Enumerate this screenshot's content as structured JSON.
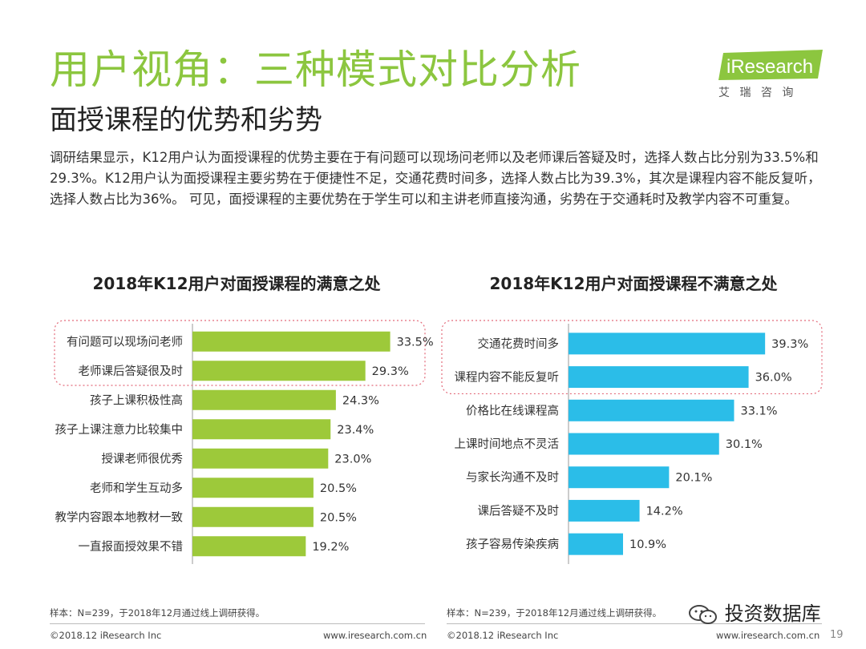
{
  "header": {
    "title": "用户视角：三种模式对比分析",
    "subtitle": "面授课程的优势和劣势",
    "logo_text": "iResearch",
    "logo_sub": "艾 瑞 咨 询"
  },
  "summary": "调研结果显示，K12用户认为面授课程的优势主要在于有问题可以现场问老师以及老师课后答疑及时，选择人数占比分别为33.5%和29.3%。K12用户认为面授课程主要劣势在于便捷性不足，交通花费时间多，选择人数占比为39.3%，其次是课程内容不能反复听，选择人数占比为36%。 可见，面授课程的主要优势在于学生可以和主讲老师直接沟通，劣势在于交通耗时及教学内容不可重复。",
  "chart_data": [
    {
      "type": "bar",
      "orientation": "horizontal",
      "title": "2018年K12用户对面授课程的满意之处",
      "categories": [
        "有问题可以现场问老师",
        "老师课后答疑很及时",
        "孩子上课积极性高",
        "孩子上课注意力比较集中",
        "授课老师很优秀",
        "老师和学生互动多",
        "教学内容跟本地教材一致",
        "一直报面授效果不错"
      ],
      "values": [
        33.5,
        29.3,
        24.3,
        23.4,
        23.0,
        20.5,
        20.5,
        19.2
      ],
      "value_labels": [
        "33.5%",
        "29.3%",
        "24.3%",
        "23.4%",
        "23.0%",
        "20.5%",
        "20.5%",
        "19.2%"
      ],
      "unit": "%",
      "color": "#9dc93a",
      "highlighted_top": 2,
      "xlim": [
        0,
        36
      ]
    },
    {
      "type": "bar",
      "orientation": "horizontal",
      "title": "2018年K12用户对面授课程不满意之处",
      "categories": [
        "交通花费时间多",
        "课程内容不能反复听",
        "价格比在线课程高",
        "上课时间地点不灵活",
        "与家长沟通不及时",
        "课后答疑不及时",
        "孩子容易传染疾病"
      ],
      "values": [
        39.3,
        36.0,
        33.1,
        30.1,
        20.1,
        14.2,
        10.9
      ],
      "value_labels": [
        "39.3%",
        "36.0%",
        "33.1%",
        "30.1%",
        "20.1%",
        "14.2%",
        "10.9%"
      ],
      "unit": "%",
      "color": "#2bbde8",
      "highlighted_top": 2,
      "xlim": [
        0,
        42
      ]
    }
  ],
  "footer": {
    "sample_note": "样本：N=239，于2018年12月通过线上调研获得。",
    "copyright": "©2018.12 iResearch Inc",
    "url": "www.iresearch.com.cn",
    "watermark": "投资数据库",
    "page_number": "19"
  },
  "colors": {
    "title": "#8cc63f",
    "highlight_border": "#e36a7a"
  }
}
